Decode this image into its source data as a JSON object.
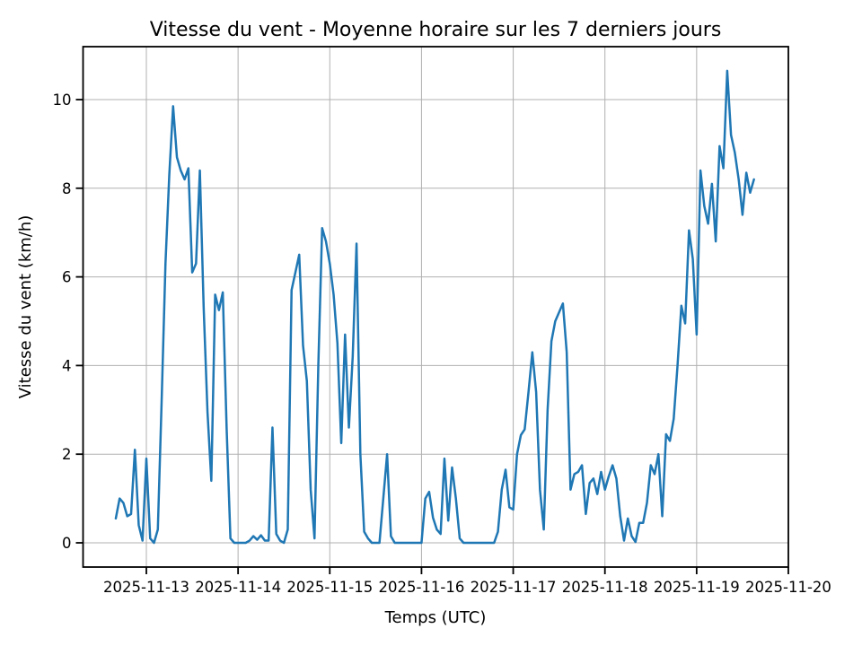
{
  "figure": {
    "title": "Vitesse du vent - Moyenne horaire sur les 7 derniers jours"
  },
  "chart_data": {
    "type": "line",
    "title": "Vitesse du vent - Moyenne horaire sur les 7 derniers jours",
    "xlabel": "Temps (UTC)",
    "ylabel": "Vitesse du vent (km/h)",
    "x_tick_labels": [
      "2025-11-13",
      "2025-11-14",
      "2025-11-15",
      "2025-11-16",
      "2025-11-17",
      "2025-11-18",
      "2025-11-19",
      "2025-11-20"
    ],
    "y_ticks": [
      0,
      2,
      4,
      6,
      8,
      10
    ],
    "ylim": [
      -0.55,
      11.19
    ],
    "grid": true,
    "legend": false,
    "line_color": "#1f77b4",
    "grid_color": "#b0b0b0",
    "spine_color": "#000000",
    "text_color": "#000000",
    "series": [
      {
        "name": "vitesse-moyenne-horaire",
        "start": "2025-11-12 16:00",
        "interval_hours": 1,
        "values": [
          0.55,
          1.0,
          0.9,
          0.6,
          0.65,
          2.1,
          0.4,
          0.05,
          1.9,
          0.1,
          0.0,
          0.3,
          3.2,
          6.3,
          8.3,
          9.85,
          8.7,
          8.4,
          8.2,
          8.45,
          6.1,
          6.3,
          8.4,
          5.3,
          2.95,
          1.4,
          5.6,
          5.25,
          5.65,
          2.6,
          0.1,
          0.0,
          0.0,
          0.0,
          0.0,
          0.05,
          0.15,
          0.07,
          0.17,
          0.05,
          0.05,
          2.6,
          0.2,
          0.05,
          0.0,
          0.3,
          5.7,
          6.1,
          6.5,
          4.45,
          3.65,
          1.2,
          0.1,
          4.0,
          7.1,
          6.8,
          6.3,
          5.6,
          4.5,
          2.25,
          4.7,
          2.6,
          4.2,
          6.75,
          2.0,
          0.25,
          0.1,
          0.0,
          0.0,
          0.0,
          1.0,
          2.0,
          0.15,
          0.0,
          0.0,
          0.0,
          0.0,
          0.0,
          0.0,
          0.0,
          0.0,
          1.0,
          1.15,
          0.57,
          0.3,
          0.2,
          1.9,
          0.5,
          1.7,
          1.0,
          0.1,
          0.0,
          0.0,
          0.0,
          0.0,
          0.0,
          0.0,
          0.0,
          0.0,
          0.0,
          0.25,
          1.2,
          1.65,
          0.8,
          0.75,
          2.0,
          2.43,
          2.56,
          3.4,
          4.3,
          3.4,
          1.2,
          0.3,
          3.0,
          4.55,
          5.0,
          5.2,
          5.4,
          4.3,
          1.2,
          1.55,
          1.6,
          1.75,
          0.65,
          1.35,
          1.45,
          1.1,
          1.6,
          1.2,
          1.5,
          1.75,
          1.45,
          0.6,
          0.05,
          0.55,
          0.15,
          0.02,
          0.45,
          0.45,
          0.9,
          1.75,
          1.55,
          2.0,
          0.6,
          2.45,
          2.3,
          2.8,
          4.0,
          5.35,
          4.95,
          7.05,
          6.4,
          4.7,
          8.4,
          7.6,
          7.2,
          8.1,
          6.8,
          8.95,
          8.45,
          10.65,
          9.2,
          8.8,
          8.2,
          7.4,
          8.35,
          7.9,
          8.2
        ]
      }
    ]
  }
}
